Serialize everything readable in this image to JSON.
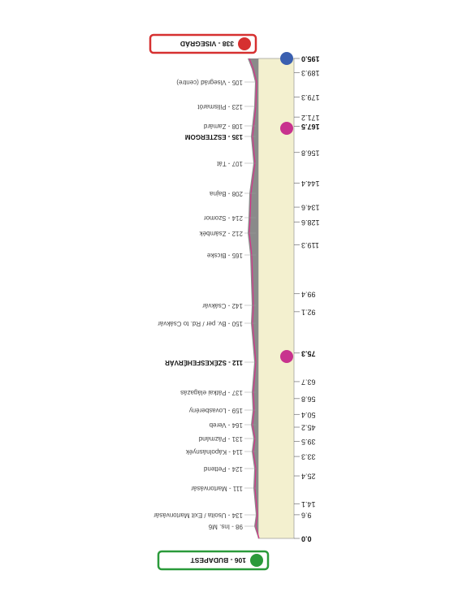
{
  "start": "106 - BUDAPEST",
  "finish": "338 - VISEGRÁD",
  "km_marks": [
    "0.0",
    "9.6",
    "14.1",
    "25.4",
    "33.3",
    "39.5",
    "45.2",
    "50.4",
    "56.8",
    "63.7",
    "75.3",
    "92.1",
    "99.4",
    "119.3",
    "128.6",
    "134.6",
    "144.4",
    "156.8",
    "167.5",
    "171.2",
    "179.3",
    "189.3",
    "195.0"
  ],
  "places": [
    "98 - Ins. M6",
    "134 - Usoita / Exit Martonvásár",
    "111 - Martonvásár",
    "124 - Pettend",
    "114 - Kápolnásnyék",
    "131 - Pázmánd",
    "164 - Vereb",
    "159 - Lovasberény",
    "137 - Pátkai elágazás",
    "112 - SZÉKESFEHÉRVÁR",
    "150 - Bv. per / Rd. to Csákvár",
    "142 - Csákvár",
    "165 - Bicske",
    "212 - Zsámbék",
    "214 - Szomor",
    "208 - Bajna",
    "107 - Tát",
    "135 - ESZTERGOM",
    "108 - Zamárd",
    "123 - Pilismarót",
    "105 - Visegrád (centre)"
  ]
}
